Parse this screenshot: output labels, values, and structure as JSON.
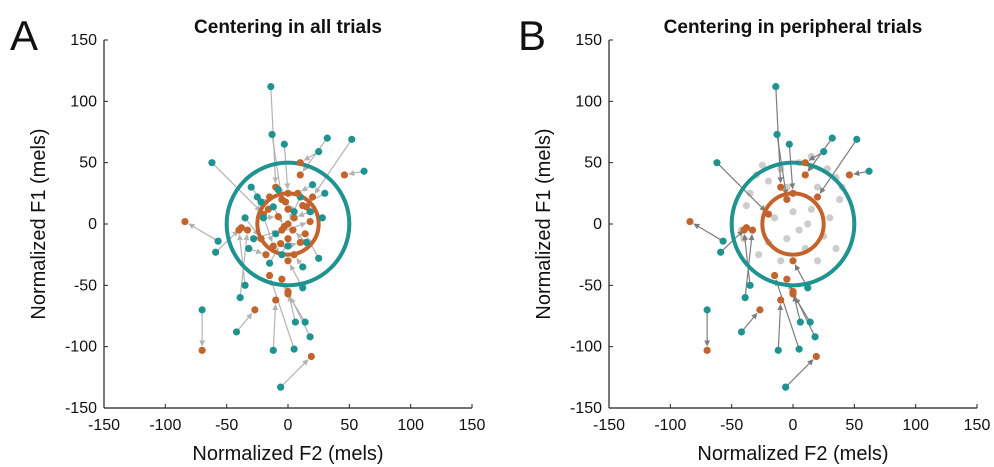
{
  "colors": {
    "outer": "#1e9390",
    "inner": "#c2642c",
    "arrow_all": "#b3b3b3",
    "arrow_peripheral": "#7d7d7d",
    "nonperipheral_point": "#cdcdcd"
  },
  "chart_data": [
    {
      "type": "scatter",
      "panel_letter": "A",
      "title": "Centering in all trials",
      "xlabel": "Normalized F2 (mels)",
      "ylabel": "Normalized F1 (mels)",
      "xlim": [
        -150,
        150
      ],
      "ylim": [
        -150,
        150
      ],
      "xticks": [
        "-150",
        "-100",
        "-50",
        "0",
        "50",
        "100",
        "150"
      ],
      "yticks": [
        "-150",
        "-100",
        "-50",
        "0",
        "50",
        "100",
        "150"
      ],
      "grid": false,
      "show_central_points": true,
      "arrow_color": "arrow_all",
      "circles": [
        {
          "center": [
            0,
            0
          ],
          "radius": 50,
          "color": "outer"
        },
        {
          "center": [
            0,
            0
          ],
          "radius": 25,
          "color": "inner"
        }
      ],
      "peripheral": [
        {
          "start": [
            -14,
            112
          ],
          "end": [
            -10,
            30
          ]
        },
        {
          "start": [
            -62,
            50
          ],
          "end": [
            -20,
            8
          ]
        },
        {
          "start": [
            -13,
            73
          ],
          "end": [
            -5,
            20
          ]
        },
        {
          "start": [
            -3,
            65
          ],
          "end": [
            0,
            25
          ]
        },
        {
          "start": [
            32,
            70
          ],
          "end": [
            10,
            40
          ]
        },
        {
          "start": [
            52,
            69
          ],
          "end": [
            20,
            22
          ]
        },
        {
          "start": [
            25,
            59
          ],
          "end": [
            10,
            50
          ]
        },
        {
          "start": [
            62,
            43
          ],
          "end": [
            46,
            40
          ]
        },
        {
          "start": [
            -57,
            -14
          ],
          "end": [
            -84,
            2
          ]
        },
        {
          "start": [
            -59,
            -23
          ],
          "end": [
            -38,
            -3
          ]
        },
        {
          "start": [
            -70,
            -70
          ],
          "end": [
            -70,
            -103
          ]
        },
        {
          "start": [
            -39,
            -60
          ],
          "end": [
            -33,
            -5
          ]
        },
        {
          "start": [
            -42,
            -88
          ],
          "end": [
            -27,
            -70
          ]
        },
        {
          "start": [
            -35,
            -50
          ],
          "end": [
            -40,
            -5
          ]
        },
        {
          "start": [
            -12,
            -103
          ],
          "end": [
            -10,
            -62
          ]
        },
        {
          "start": [
            -6,
            -133
          ],
          "end": [
            19,
            -108
          ]
        },
        {
          "start": [
            5,
            -102
          ],
          "end": [
            -15,
            -42
          ]
        },
        {
          "start": [
            18,
            -92
          ],
          "end": [
            -5,
            -45
          ]
        },
        {
          "start": [
            14,
            -80
          ],
          "end": [
            0,
            -57
          ]
        },
        {
          "start": [
            12,
            -52
          ],
          "end": [
            0,
            -30
          ]
        },
        {
          "start": [
            6,
            -80
          ],
          "end": [
            0,
            -55
          ]
        }
      ],
      "central": [
        {
          "start": [
            -20,
            5
          ],
          "end": [
            -8,
            6
          ]
        },
        {
          "start": [
            -22,
            18
          ],
          "end": [
            -15,
            22
          ]
        },
        {
          "start": [
            -28,
            -12
          ],
          "end": [
            -5,
            -5
          ]
        },
        {
          "start": [
            -8,
            28
          ],
          "end": [
            0,
            12
          ]
        },
        {
          "start": [
            10,
            22
          ],
          "end": [
            0,
            0
          ]
        },
        {
          "start": [
            18,
            10
          ],
          "end": [
            5,
            5
          ]
        },
        {
          "start": [
            15,
            -15
          ],
          "end": [
            4,
            -5
          ]
        },
        {
          "start": [
            -5,
            -25
          ],
          "end": [
            0,
            -12
          ]
        },
        {
          "start": [
            -30,
            30
          ],
          "end": [
            -16,
            12
          ]
        },
        {
          "start": [
            -15,
            -32
          ],
          "end": [
            -6,
            -16
          ]
        },
        {
          "start": [
            25,
            -28
          ],
          "end": [
            14,
            -8
          ]
        },
        {
          "start": [
            30,
            25
          ],
          "end": [
            12,
            15
          ]
        },
        {
          "start": [
            -12,
            14
          ],
          "end": [
            -3,
            -2
          ]
        },
        {
          "start": [
            5,
            10
          ],
          "end": [
            -2,
            18
          ]
        },
        {
          "start": [
            -35,
            5
          ],
          "end": [
            -22,
            -12
          ]
        },
        {
          "start": [
            20,
            32
          ],
          "end": [
            8,
            25
          ]
        },
        {
          "start": [
            -25,
            22
          ],
          "end": [
            -12,
            -18
          ]
        },
        {
          "start": [
            0,
            -18
          ],
          "end": [
            10,
            -15
          ]
        },
        {
          "start": [
            -10,
            -8
          ],
          "end": [
            18,
            2
          ]
        },
        {
          "start": [
            12,
            -35
          ],
          "end": [
            5,
            -25
          ]
        },
        {
          "start": [
            -32,
            -20
          ],
          "end": [
            -18,
            -25
          ]
        },
        {
          "start": [
            28,
            5
          ],
          "end": [
            15,
            14
          ]
        }
      ]
    },
    {
      "type": "scatter",
      "panel_letter": "B",
      "title": "Centering in peripheral trials",
      "xlabel": "Normalized F2 (mels)",
      "ylabel": "Normalized F1 (mels)",
      "xlim": [
        -150,
        150
      ],
      "ylim": [
        -150,
        150
      ],
      "xticks": [
        "-150",
        "-100",
        "-50",
        "0",
        "50",
        "100",
        "150"
      ],
      "yticks": [
        "-150",
        "-100",
        "-50",
        "0",
        "50",
        "100",
        "150"
      ],
      "grid": false,
      "show_central_points": false,
      "arrow_color": "arrow_peripheral",
      "circles": [
        {
          "center": [
            0,
            0
          ],
          "radius": 50,
          "color": "outer"
        },
        {
          "center": [
            0,
            0
          ],
          "radius": 25,
          "color": "inner"
        }
      ],
      "peripheral": [
        {
          "start": [
            -14,
            112
          ],
          "end": [
            -10,
            30
          ]
        },
        {
          "start": [
            -62,
            50
          ],
          "end": [
            -20,
            8
          ]
        },
        {
          "start": [
            -13,
            73
          ],
          "end": [
            -5,
            20
          ]
        },
        {
          "start": [
            -3,
            65
          ],
          "end": [
            0,
            25
          ]
        },
        {
          "start": [
            32,
            70
          ],
          "end": [
            10,
            40
          ]
        },
        {
          "start": [
            52,
            69
          ],
          "end": [
            20,
            22
          ]
        },
        {
          "start": [
            25,
            59
          ],
          "end": [
            10,
            50
          ]
        },
        {
          "start": [
            62,
            43
          ],
          "end": [
            46,
            40
          ]
        },
        {
          "start": [
            -57,
            -14
          ],
          "end": [
            -84,
            2
          ]
        },
        {
          "start": [
            -59,
            -23
          ],
          "end": [
            -38,
            -3
          ]
        },
        {
          "start": [
            -70,
            -70
          ],
          "end": [
            -70,
            -103
          ]
        },
        {
          "start": [
            -39,
            -60
          ],
          "end": [
            -33,
            -5
          ]
        },
        {
          "start": [
            -42,
            -88
          ],
          "end": [
            -27,
            -70
          ]
        },
        {
          "start": [
            -35,
            -50
          ],
          "end": [
            -40,
            -5
          ]
        },
        {
          "start": [
            -12,
            -103
          ],
          "end": [
            -10,
            -62
          ]
        },
        {
          "start": [
            -6,
            -133
          ],
          "end": [
            19,
            -108
          ]
        },
        {
          "start": [
            5,
            -102
          ],
          "end": [
            -15,
            -42
          ]
        },
        {
          "start": [
            18,
            -92
          ],
          "end": [
            -5,
            -45
          ]
        },
        {
          "start": [
            14,
            -80
          ],
          "end": [
            0,
            -57
          ]
        },
        {
          "start": [
            12,
            -52
          ],
          "end": [
            0,
            -30
          ]
        },
        {
          "start": [
            6,
            -80
          ],
          "end": [
            0,
            -55
          ]
        }
      ],
      "nonperipheral_points": [
        [
          -20,
          35
        ],
        [
          -30,
          40
        ],
        [
          -10,
          45
        ],
        [
          5,
          50
        ],
        [
          15,
          55
        ],
        [
          35,
          38
        ],
        [
          38,
          20
        ],
        [
          -38,
          15
        ],
        [
          -42,
          -5
        ],
        [
          -20,
          -15
        ],
        [
          10,
          -20
        ],
        [
          25,
          -10
        ],
        [
          30,
          5
        ],
        [
          20,
          30
        ],
        [
          -5,
          30
        ],
        [
          0,
          10
        ],
        [
          -15,
          5
        ],
        [
          5,
          -5
        ],
        [
          15,
          12
        ],
        [
          -28,
          -25
        ],
        [
          -10,
          -30
        ],
        [
          20,
          -30
        ],
        [
          35,
          -20
        ],
        [
          -35,
          25
        ],
        [
          28,
          45
        ],
        [
          -5,
          -12
        ],
        [
          12,
          0
        ],
        [
          40,
          30
        ],
        [
          -40,
          -12
        ],
        [
          -25,
          48
        ]
      ]
    }
  ]
}
